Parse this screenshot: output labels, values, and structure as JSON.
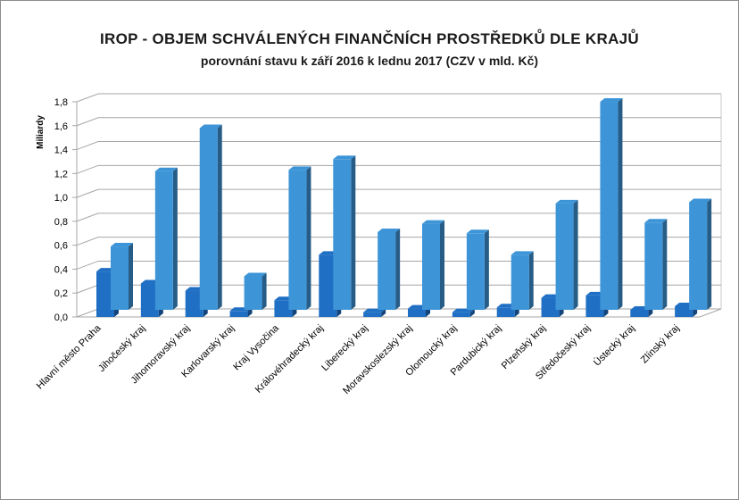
{
  "chart_data": {
    "type": "bar",
    "title": "IROP - OBJEM SCHVÁLENÝCH FINANČNÍCH PROSTŘEDKŮ DLE KRAJŮ",
    "subtitle": "porovnání stavu k září 2016 k lednu 2017 (CZV v mld. Kč)",
    "ylabel": "Miliardy",
    "xlabel": "",
    "ylim": [
      0,
      1.8
    ],
    "ytick_step": 0.2,
    "yticks": [
      "0,0",
      "0,2",
      "0,4",
      "0,6",
      "0,8",
      "1,0",
      "1,2",
      "1,4",
      "1,6",
      "1,8"
    ],
    "grid": true,
    "legend": "none",
    "categories": [
      "Hlavní město Praha",
      "Jihočeský kraj",
      "Jihomoravský kraj",
      "Karlovarský kraj",
      "Kraj Vysočina",
      "Královéhradecký kraj",
      "Liberecký kraj",
      "Moravskoslezský kraj",
      "Olomoucký kraj",
      "Pardubický kraj",
      "Plzeňský kraj",
      "Středočeský kraj",
      "Ústecký kraj",
      "Zlínský kraj"
    ],
    "series": [
      {
        "values": [
          0.38,
          0.28,
          0.22,
          0.05,
          0.14,
          0.52,
          0.04,
          0.07,
          0.04,
          0.08,
          0.16,
          0.18,
          0.06,
          0.09
        ],
        "color": "#1f6fc5"
      },
      {
        "values": [
          0.53,
          1.16,
          1.52,
          0.28,
          1.17,
          1.26,
          0.65,
          0.72,
          0.64,
          0.46,
          0.89,
          1.74,
          0.73,
          0.9
        ],
        "color": "#3d95d8"
      }
    ]
  }
}
